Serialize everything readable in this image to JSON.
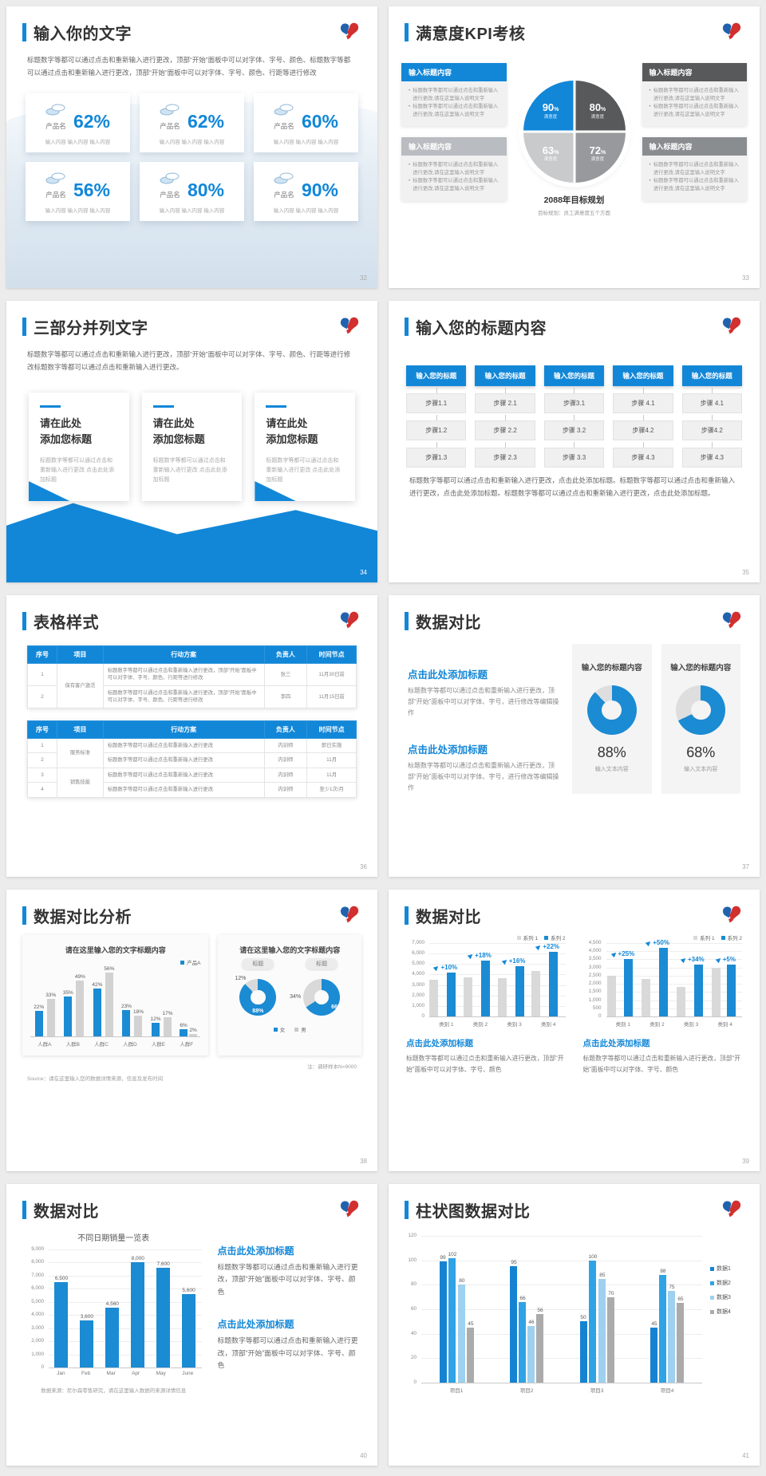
{
  "app": {
    "background": "#ececec",
    "accent": "#1287d8",
    "slide_background": "#ffffff"
  },
  "slides": {
    "s32": {
      "page": "32",
      "title": "输入你的文字",
      "body": "标题数字等都可以通过点击和重新输入进行更改，顶部“开始”面板中可以对字体、字号、颜色、标题数字等都可以通过点击和重新输入进行更改，顶部“开始”面板中可以对字体、字号、颜色、行距等进行修改",
      "cards": [
        {
          "label": "产品名",
          "pct": "62%",
          "sub": "输入内容 输入内容 输入内容"
        },
        {
          "label": "产品名",
          "pct": "62%",
          "sub": "输入内容 输入内容 输入内容"
        },
        {
          "label": "产品名",
          "pct": "60%",
          "sub": "输入内容 输入内容 输入内容"
        },
        {
          "label": "产品名",
          "pct": "56%",
          "sub": "输入内容 输入内容 输入内容"
        },
        {
          "label": "产品名",
          "pct": "80%",
          "sub": "输入内容 输入内容 输入内容"
        },
        {
          "label": "产品名",
          "pct": "90%",
          "sub": "输入内容 输入内容 输入内容"
        }
      ]
    },
    "s33": {
      "page": "33",
      "title": "满意度KPI考核",
      "boxes": [
        {
          "header": "输入标题内容",
          "color": "#1287d8",
          "bullets": [
            "标题数字等都可以通过点击和重新输入进行更改,请在这里输入说明文字",
            "标题数字等都可以通过点击和重新输入进行更改,请在这里输入说明文字"
          ]
        },
        {
          "header": "输入标题内容",
          "color": "#b9bcc0",
          "bullets": [
            "标题数字等都可以通过点击和重新输入进行更改,请在这里输入说明文字",
            "标题数字等都可以通过点击和重新输入进行更改,请在这里输入说明文字"
          ]
        },
        {
          "header": "输入标题内容",
          "color": "#58595b",
          "bullets": [
            "标题数字等都可以通过点击和重新输入进行更改,请在这里输入说明文字",
            "标题数字等都可以通过点击和重新输入进行更改,请在这里输入说明文字"
          ]
        },
        {
          "header": "输入标题内容",
          "color": "#8a8d90",
          "bullets": [
            "标题数字等都可以通过点击和重新输入进行更改,请在这里输入说明文字",
            "标题数字等都可以通过点击和重新输入进行更改,请在这里输入说明文字"
          ]
        }
      ],
      "quadrants": [
        {
          "value": "90",
          "unit": "%",
          "label": "满意度",
          "color": "#1287d8"
        },
        {
          "value": "80",
          "unit": "%",
          "label": "满意度",
          "color": "#58595b"
        },
        {
          "value": "63",
          "unit": "%",
          "label": "满意度",
          "color": "#c8cacc"
        },
        {
          "value": "72",
          "unit": "%",
          "label": "满意度",
          "color": "#97999c"
        }
      ],
      "center": {
        "title": "2088年目标规划",
        "subtitle": "目标规划：员工满意度五个方面"
      }
    },
    "s34": {
      "page": "34",
      "title": "三部分并列文字",
      "body": "标题数字等都可以通过点击和重新输入进行更改，顶部“开始”面板中可以对字体、字号、颜色、行距等进行修改标题数字等都可以通过点击和重新输入进行更改。",
      "cards": [
        {
          "t1": "请在此处",
          "t2": "添加您标题",
          "text": "标题数字等都可以通过点击和重新输入进行更改 点击此处添加标题"
        },
        {
          "t1": "请在此处",
          "t2": "添加您标题",
          "text": "标题数字等都可以通过点击和重新输入进行更改 点击此处添加标题"
        },
        {
          "t1": "请在此处",
          "t2": "添加您标题",
          "text": "标题数字等都可以通过点击和重新输入进行更改 点击此处添加标题"
        }
      ]
    },
    "s35": {
      "page": "35",
      "title": "输入您的标题内容",
      "columns": [
        {
          "header": "输入您的标题",
          "steps": [
            "步骤1.1",
            "步骤1.2",
            "步骤1.3"
          ]
        },
        {
          "header": "输入您的标题",
          "steps": [
            "步骤 2.1",
            "步骤 2.2",
            "步骤 2.3"
          ]
        },
        {
          "header": "输入您的标题",
          "steps": [
            "步骤3.1",
            "步骤 3.2",
            "步骤 3.3"
          ]
        },
        {
          "header": "输入您的标题",
          "steps": [
            "步骤 4.1",
            "步骤4.2",
            "步骤 4.3"
          ]
        },
        {
          "header": "输入您的标题",
          "steps": [
            "步骤 4.1",
            "步骤4.2",
            "步骤 4.3"
          ]
        }
      ],
      "body": "标题数字等都可以通过点击和重新输入进行更改，点击此处添加标题。标题数字等都可以通过点击和重新输入进行更改，点击此处添加标题。标题数字等都可以通过点击和重新输入进行更改，点击此处添加标题。"
    },
    "s36": {
      "page": "36",
      "title": "表格样式",
      "tables": [
        {
          "headers": [
            "序号",
            "项目",
            "行动方案",
            "负责人",
            "时间节点"
          ],
          "rows": [
            [
              {
                "t": "1"
              },
              {
                "t": "保有客户激活",
                "rs": 2
              },
              {
                "t": "标题数字等都可以通过点击和重新输入进行更改，顶部“开始”面板中可以对字体、字号、颜色、行距等进行修改"
              },
              {
                "t": "张三"
              },
              {
                "t": "11月30日前"
              }
            ],
            [
              {
                "t": "2"
              },
              null,
              {
                "t": "标题数字等都可以通过点击和重新输入进行更改，顶部“开始”面板中可以对字体、字号、颜色、行距等进行修改"
              },
              {
                "t": "李四"
              },
              {
                "t": "11月15日前"
              }
            ]
          ]
        },
        {
          "headers": [
            "序号",
            "项目",
            "行动方案",
            "负责人",
            "时间节点"
          ],
          "rows": [
            [
              {
                "t": "1"
              },
              {
                "t": "服务标准",
                "rs": 2
              },
              {
                "t": "标题数字等都可以通过点击和重新输入进行更改"
              },
              {
                "t": "内训师"
              },
              {
                "t": "即日实施"
              }
            ],
            [
              {
                "t": "2"
              },
              null,
              {
                "t": "标题数字等都可以通过点击和重新输入进行更改"
              },
              {
                "t": "内训师"
              },
              {
                "t": "11月"
              }
            ],
            [
              {
                "t": "3"
              },
              {
                "t": "销售技能",
                "rs": 2
              },
              {
                "t": "标题数字等都可以通过点击和重新输入进行更改"
              },
              {
                "t": "内训师"
              },
              {
                "t": "11月"
              }
            ],
            [
              {
                "t": "4"
              },
              null,
              {
                "t": "标题数字等都可以通过点击和重新输入进行更改"
              },
              {
                "t": "内训师"
              },
              {
                "t": "至少1次/月"
              }
            ]
          ]
        }
      ]
    },
    "s37": {
      "page": "37",
      "title": "数据对比",
      "blocks": [
        {
          "head": "点击此处添加标题",
          "text": "标题数字等都可以通过点击和重新输入进行更改，顶部“开始”面板中可以对字体、字号，进行修改等编辑操作"
        },
        {
          "head": "点击此处添加标题",
          "text": "标题数字等都可以通过点击和重新输入进行更改，顶部“开始”面板中可以对字体、字号，进行修改等编辑操作"
        }
      ],
      "donut_cards": [
        {
          "title": "输入您的标题内容",
          "pct": 88,
          "big": "88%",
          "sub": "输入文本内容",
          "blue": "#1b8bd3",
          "gray": "#dedede"
        },
        {
          "title": "输入您的标题内容",
          "pct": 68,
          "big": "68%",
          "sub": "输入文本内容",
          "blue": "#1b8bd3",
          "gray": "#dedede"
        }
      ]
    },
    "s38": {
      "page": "38",
      "title": "数据对比分析",
      "left": {
        "title": "请在这里输入您的文字标题内容",
        "legend": [
          {
            "label": "产品A",
            "color": "#1b8bd3"
          }
        ],
        "categories": [
          "人群A",
          "人群B",
          "人群C",
          "人群D",
          "人群E",
          "人群F"
        ],
        "series": [
          {
            "name": "产品A",
            "color": "#1b8bd3",
            "values": [
              22,
              35,
              42,
              23,
              12,
              6
            ]
          },
          {
            "name": "对比",
            "color": "#d2d2d2",
            "values": [
              33,
              49,
              56,
              18,
              17,
              2
            ]
          }
        ],
        "ymax": 60
      },
      "right": {
        "title": "请在这里输入您的文字标题内容",
        "badge": "标题",
        "donuts": [
          {
            "small": "12%",
            "big": "88%",
            "pct": 88,
            "blue": "#1b8bd3",
            "gray": "#d9d9d9"
          },
          {
            "small": "34%",
            "big": "66%",
            "pct": 66,
            "blue": "#1b8bd3",
            "gray": "#d9d9d9"
          }
        ],
        "legend": [
          {
            "label": "女",
            "color": "#1b8bd3"
          },
          {
            "label": "男",
            "color": "#c9c9c9"
          }
        ]
      },
      "note": "注：调研样本N=9000",
      "source": "Source：请在这里输入您的数据详情来源，信息及发布时间"
    },
    "s39": {
      "page": "39",
      "title": "数据对比",
      "charts": [
        {
          "legend": [
            {
              "label": "系列 1",
              "color": "#d9d9d9"
            },
            {
              "label": "系列 2",
              "color": "#1b8bd3"
            }
          ],
          "ymax": 7000,
          "step": 1000,
          "categories": [
            "类别 1",
            "类别 2",
            "类别 3",
            "类别 4"
          ],
          "gray": [
            3500,
            3750,
            3650,
            4300
          ],
          "blue": [
            4200,
            5300,
            4800,
            6200
          ],
          "growth": [
            "+10%",
            "+18%",
            "+16%",
            "+22%"
          ]
        },
        {
          "legend": [
            {
              "label": "系列 1",
              "color": "#d9d9d9"
            },
            {
              "label": "系列 2",
              "color": "#1b8bd3"
            }
          ],
          "ymax": 4500,
          "step": 500,
          "categories": [
            "类别 1",
            "类别 2",
            "类别 3",
            "类别 4"
          ],
          "gray": [
            2500,
            2300,
            1800,
            3000
          ],
          "blue": [
            3500,
            4200,
            3200,
            3200
          ],
          "growth": [
            "+25%",
            "+50%",
            "+34%",
            "+5%"
          ]
        }
      ],
      "blocks": [
        {
          "head": "点击此处添加标题",
          "text": "标题数字等都可以通过点击和重新输入进行更改，顶部“开始”面板中可以对字体、字号、颜色"
        },
        {
          "head": "点击此处添加标题",
          "text": "标题数字等都可以通过点击和重新输入进行更改，顶部“开始”面板中可以对字体、字号、颜色"
        }
      ]
    },
    "s40": {
      "page": "40",
      "title": "数据对比",
      "chart": {
        "title": "不同日期销量一览表",
        "ymax": 9000,
        "step": 1000,
        "categories": [
          "Jan",
          "Feb",
          "Mar",
          "Apr",
          "May",
          "June"
        ],
        "values": [
          6500,
          3600,
          4560,
          8000,
          7600,
          5600
        ],
        "labels": [
          "6,500",
          "3,600",
          "4,560",
          "8,000",
          "7,600",
          "5,600"
        ],
        "bar_color": "#1b8bd3"
      },
      "source": "数据来源：尼尔森零售研究，请在这里输入数据的来源详情信息",
      "blocks": [
        {
          "head": "点击此处添加标题",
          "text": "标题数字等都可以通过点击和重新输入进行更改，顶部“开始”面板中可以对字体、字号、颜色"
        },
        {
          "head": "点击此处添加标题",
          "text": "标题数字等都可以通过点击和重新输入进行更改，顶部“开始”面板中可以对字体、字号、颜色"
        }
      ]
    },
    "s41": {
      "page": "41",
      "title": "柱状图数据对比",
      "chart": {
        "ymax": 120,
        "step": 20,
        "categories": [
          "项目1",
          "项目2",
          "项目3",
          "项目4"
        ],
        "series": [
          {
            "name": "数据1",
            "color": "#1583d2",
            "values": [
              99,
              95,
              50,
              45
            ]
          },
          {
            "name": "数据2",
            "color": "#2fa3e5",
            "values": [
              102,
              66,
              100,
              88
            ]
          },
          {
            "name": "数据3",
            "color": "#9ed0ef",
            "values": [
              80,
              46,
              85,
              75
            ]
          },
          {
            "name": "数据4",
            "color": "#ababab",
            "values": [
              45,
              56,
              70,
              65
            ]
          }
        ]
      }
    }
  }
}
